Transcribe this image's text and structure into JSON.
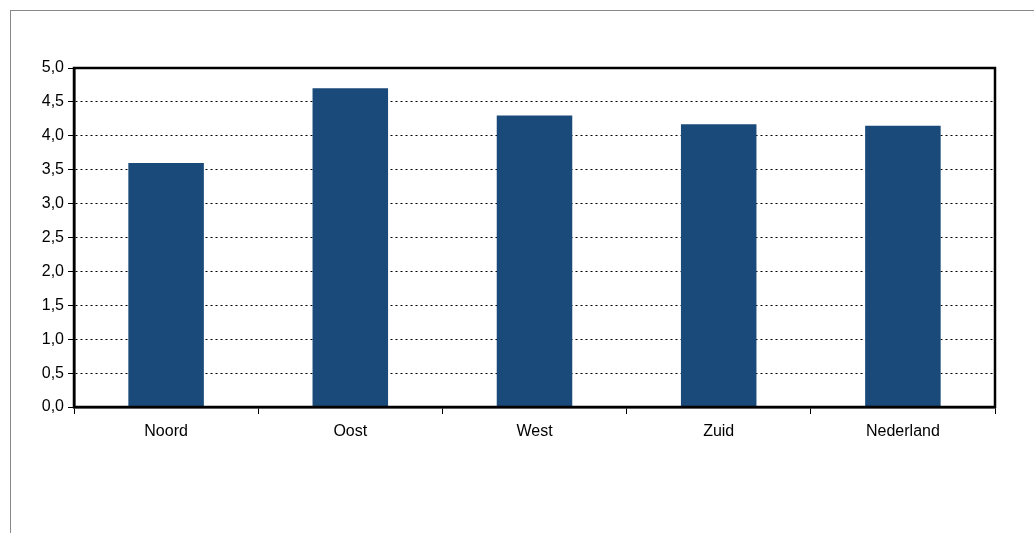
{
  "chart_data": {
    "type": "bar",
    "categories": [
      "Noord",
      "Oost",
      "West",
      "Zuid",
      "Nederland"
    ],
    "values": [
      3.6,
      4.7,
      4.3,
      4.17,
      4.15
    ],
    "color": "#1a4a7a",
    "ylim": [
      0,
      5
    ],
    "yticks": [
      {
        "value": 0,
        "label": "0,0"
      },
      {
        "value": 0.5,
        "label": "0,5"
      },
      {
        "value": 1,
        "label": "1,0"
      },
      {
        "value": 1.5,
        "label": "1,5"
      },
      {
        "value": 2,
        "label": "2,0"
      },
      {
        "value": 2.5,
        "label": "2,5"
      },
      {
        "value": 3,
        "label": "3,0"
      },
      {
        "value": 3.5,
        "label": "3,5"
      },
      {
        "value": 4,
        "label": "4,0"
      },
      {
        "value": 4.5,
        "label": "4,5"
      },
      {
        "value": 5,
        "label": "5,0"
      }
    ],
    "grid": "y",
    "line_style": "dotted"
  }
}
